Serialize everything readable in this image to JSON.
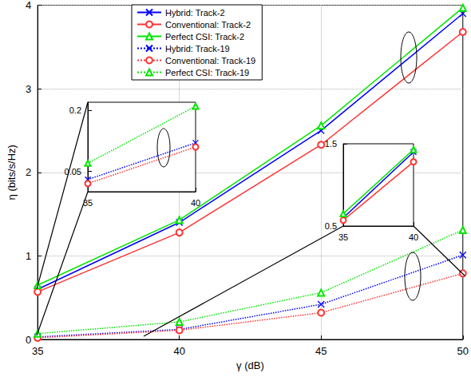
{
  "chart_data": [
    {
      "type": "line",
      "x_label": "γ (dB)",
      "y_label": "η (bits/s/Hz)",
      "x": [
        35,
        40,
        45,
        50
      ],
      "xlim": [
        35,
        50
      ],
      "xticks": [
        35,
        40,
        45,
        50
      ],
      "ylim": [
        0,
        4
      ],
      "yticks": [
        0,
        1,
        2,
        3,
        4
      ],
      "grid": true,
      "legend": "top",
      "series": [
        {
          "name": "Hybrid: Track-2",
          "color": "#0000ff",
          "marker": "x",
          "line_style": "solid",
          "values": [
            0.6,
            1.4,
            2.5,
            3.9
          ]
        },
        {
          "name": "Conventional: Track-2",
          "color": "#ff3333",
          "marker": "circle",
          "line_style": "solid",
          "values": [
            0.57,
            1.28,
            2.33,
            3.68
          ]
        },
        {
          "name": "Perfect CSI: Track-2",
          "color": "#00e600",
          "marker": "triangle",
          "line_style": "solid",
          "values": [
            0.65,
            1.43,
            2.56,
            3.97
          ]
        },
        {
          "name": "Hybrid: Track-19",
          "color": "#0000ff",
          "marker": "x",
          "line_style": "dotted",
          "values": [
            0.03,
            0.12,
            0.42,
            1.01
          ]
        },
        {
          "name": "Conventional: Track-19",
          "color": "#ff3333",
          "marker": "circle",
          "line_style": "dotted",
          "values": [
            0.02,
            0.11,
            0.32,
            0.79
          ]
        },
        {
          "name": "Perfect CSI: Track-19",
          "color": "#00e600",
          "marker": "triangle",
          "line_style": "dotted",
          "values": [
            0.07,
            0.21,
            0.56,
            1.31
          ]
        }
      ]
    },
    {
      "type": "line",
      "x": [
        35,
        40
      ],
      "xlim": [
        35,
        40
      ],
      "xticks": [
        35,
        40
      ],
      "ylim": [
        0,
        0.22
      ],
      "yticks": [
        0.05,
        0.2
      ],
      "series": [
        {
          "name": "Hybrid: Track-19",
          "color": "#0000ff",
          "marker": "x",
          "line_style": "dotted",
          "values": [
            0.03,
            0.12
          ]
        },
        {
          "name": "Conventional: Track-19",
          "color": "#ff3333",
          "marker": "circle",
          "line_style": "dotted",
          "values": [
            0.02,
            0.11
          ]
        },
        {
          "name": "Perfect CSI: Track-19",
          "color": "#00e600",
          "marker": "triangle",
          "line_style": "dotted",
          "values": [
            0.07,
            0.21
          ]
        }
      ]
    },
    {
      "type": "line",
      "x": [
        35,
        40
      ],
      "xlim": [
        35,
        40
      ],
      "xticks": [
        35,
        40
      ],
      "ylim": [
        0.5,
        1.5
      ],
      "yticks": [
        0.5,
        1.5
      ],
      "series": [
        {
          "name": "Hybrid: Track-2",
          "color": "#0000ff",
          "marker": "x",
          "line_style": "solid",
          "values": [
            0.6,
            1.4
          ]
        },
        {
          "name": "Conventional: Track-2",
          "color": "#ff3333",
          "marker": "circle",
          "line_style": "solid",
          "values": [
            0.57,
            1.28
          ]
        },
        {
          "name": "Perfect CSI: Track-2",
          "color": "#00e600",
          "marker": "triangle",
          "line_style": "solid",
          "values": [
            0.65,
            1.43
          ]
        }
      ]
    }
  ]
}
